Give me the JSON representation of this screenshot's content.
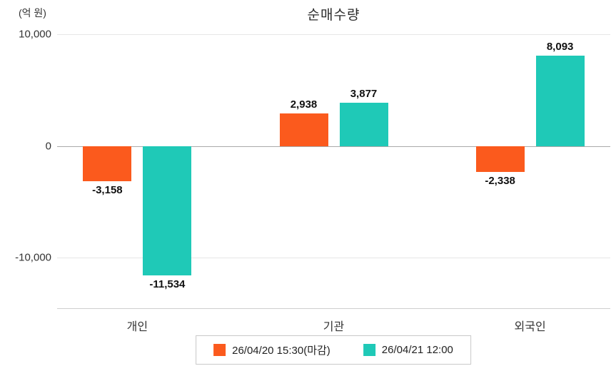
{
  "title": "순매수량",
  "unit_label": "(억 원)",
  "colors": {
    "series1": "#fb5a1d",
    "series2": "#1fc9b7",
    "grid": "#e6e6e6",
    "zero_line": "#a9a9a9"
  },
  "legend": [
    {
      "label": "26/04/20 15:30(마감)",
      "color": "#fb5a1d"
    },
    {
      "label": "26/04/21 12:00",
      "color": "#1fc9b7"
    }
  ],
  "chart_data": {
    "type": "bar",
    "title": "순매수량",
    "ylabel": "(억 원)",
    "categories": [
      "개인",
      "기관",
      "외국인"
    ],
    "series": [
      {
        "name": "26/04/20 15:30(마감)",
        "color": "#fb5a1d",
        "values": [
          -3158,
          2938,
          -2338
        ]
      },
      {
        "name": "26/04/21 12:00",
        "color": "#1fc9b7",
        "values": [
          -11534,
          3877,
          8093
        ]
      }
    ],
    "yticks": [
      10000,
      0,
      -10000
    ],
    "ylim": [
      -14500,
      10000
    ],
    "grid": true,
    "legend_position": "bottom",
    "data_labels": true
  }
}
